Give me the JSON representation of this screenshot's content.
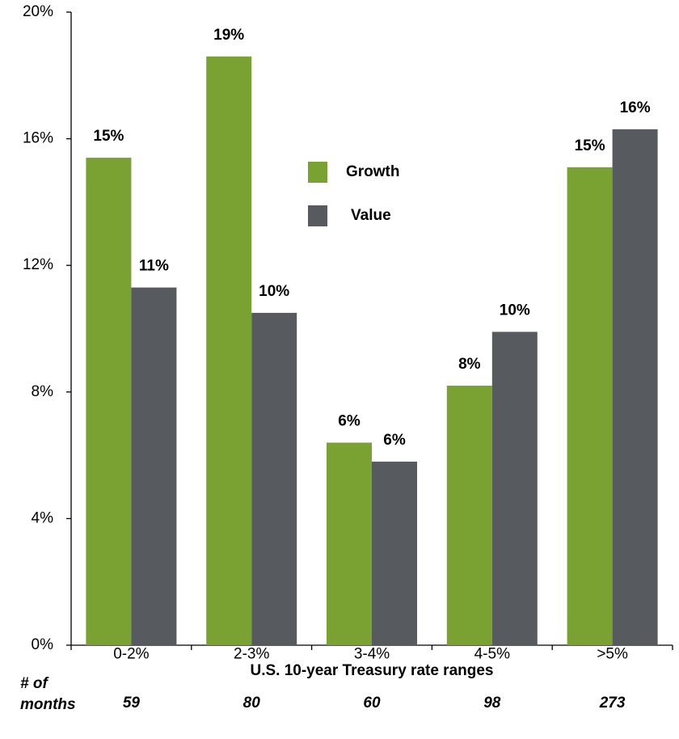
{
  "chart_data": {
    "type": "bar",
    "categories": [
      "0-2%",
      "2-3%",
      "3-4%",
      "4-5%",
      ">5%"
    ],
    "series": [
      {
        "name": "Growth",
        "color": "#7aa232",
        "values": [
          15.4,
          18.6,
          6.4,
          8.2,
          15.1
        ],
        "value_labels": [
          "15%",
          "19%",
          "6%",
          "8%",
          "15%"
        ]
      },
      {
        "name": "Value",
        "color": "#575b5f",
        "values": [
          11.3,
          10.5,
          5.8,
          9.9,
          16.3
        ],
        "value_labels": [
          "11%",
          "10%",
          "6%",
          "10%",
          "16%"
        ]
      }
    ],
    "xlabel": "U.S. 10-year Treasury rate ranges",
    "ylim": [
      0,
      20
    ],
    "yticks": [
      {
        "value": 0,
        "label": "0%"
      },
      {
        "value": 4,
        "label": "4%"
      },
      {
        "value": 8,
        "label": "8%"
      },
      {
        "value": 12,
        "label": "12%"
      },
      {
        "value": 16,
        "label": "16%"
      },
      {
        "value": 20,
        "label": "20%"
      }
    ],
    "grid": false,
    "months_label": [
      "# of",
      "months"
    ],
    "months": [
      59,
      80,
      60,
      98,
      273
    ]
  }
}
